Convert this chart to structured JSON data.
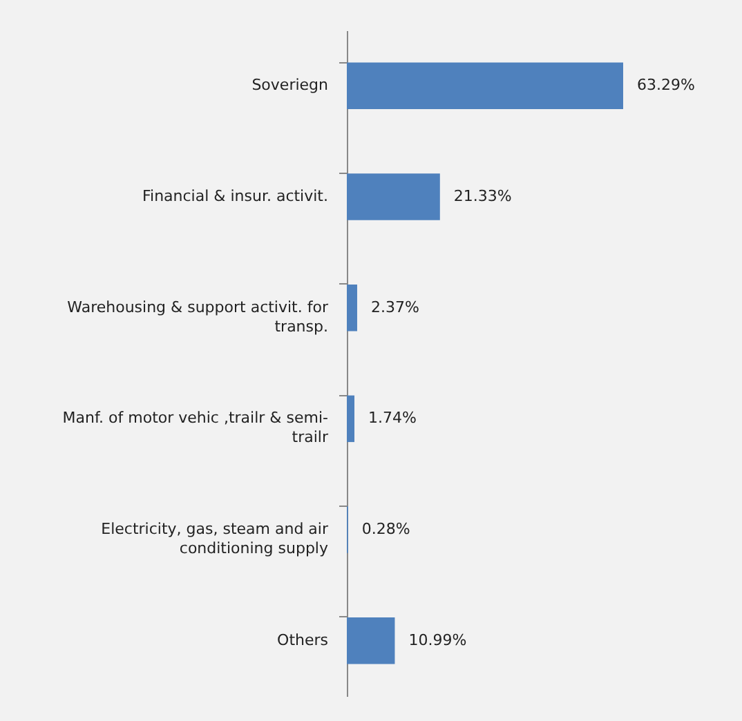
{
  "chart_data": {
    "type": "bar",
    "orientation": "horizontal",
    "categories": [
      "Soveriegn",
      "Financial & insur. activit.",
      "Warehousing & support activit. for transp.",
      "Manf. of motor vehic ,trailr & semi-trailr",
      "Electricity, gas, steam and air conditioning supply",
      "Others"
    ],
    "values": [
      63.29,
      21.33,
      2.37,
      1.74,
      0.28,
      10.99
    ],
    "value_labels": [
      "63.29%",
      "21.33%",
      "2.37%",
      "1.74%",
      "0.28%",
      "10.99%"
    ],
    "color": "#4f81bd"
  }
}
